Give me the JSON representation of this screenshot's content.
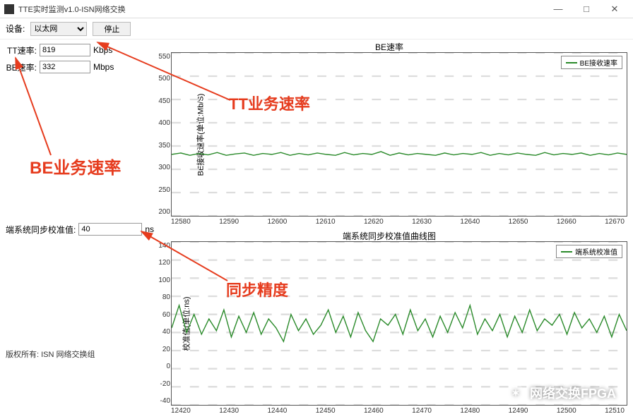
{
  "window": {
    "title": "TTE实时监测v1.0-ISN网络交换",
    "min": "—",
    "max": "□",
    "close": "✕"
  },
  "toolbar": {
    "device_label": "设备:",
    "device_value": "以太网",
    "stop_label": "停止"
  },
  "fields": {
    "tt_label": "TT速率:",
    "tt_value": "819",
    "tt_unit": "Kbps",
    "be_label": "BE速率:",
    "be_value": "332",
    "be_unit": "Mbps",
    "sync_label": "端系统同步校准值:",
    "sync_value": "40",
    "sync_unit": "ns"
  },
  "copyright": "版权所有: ISN 网络交换组",
  "chart1": {
    "title": "BE速率",
    "legend": "BE接收速率",
    "ylabel": "BE接收速率(单位:Mb/S)",
    "ylim": [
      200,
      550
    ],
    "yticks": [
      550,
      500,
      450,
      400,
      350,
      300,
      250,
      200
    ],
    "xticks": [
      "12580",
      "12590",
      "12600",
      "12610",
      "12620",
      "12630",
      "12640",
      "12650",
      "12660",
      "12670"
    ],
    "series_y": [
      332,
      335,
      330,
      334,
      331,
      336,
      330,
      333,
      335,
      330,
      334,
      332,
      336,
      330,
      334,
      331,
      335,
      332,
      330,
      336,
      331,
      334,
      332,
      338,
      330,
      335,
      331,
      334,
      332,
      330,
      335,
      331,
      334,
      332,
      336,
      330,
      334,
      331,
      335,
      332,
      330,
      336,
      331,
      334,
      332,
      335,
      330,
      334,
      331,
      335,
      332
    ],
    "line_color": "#2a8a2a",
    "grid_color": "#dddddd",
    "bg": "#ffffff"
  },
  "chart2": {
    "title": "端系统同步校准值曲线图",
    "legend": "端系统校准值",
    "ylabel": "校准值(单位:ns)",
    "ylim": [
      -40,
      140
    ],
    "yticks": [
      140,
      120,
      100,
      80,
      60,
      40,
      20,
      0,
      -20,
      -40
    ],
    "xticks": [
      "12420",
      "12430",
      "12440",
      "12450",
      "12460",
      "12470",
      "12480",
      "12490",
      "12500",
      "12510"
    ],
    "series_y": [
      45,
      70,
      40,
      60,
      38,
      55,
      42,
      65,
      35,
      58,
      40,
      62,
      38,
      55,
      45,
      30,
      60,
      42,
      55,
      38,
      48,
      65,
      40,
      58,
      35,
      62,
      42,
      30,
      55,
      48,
      60,
      38,
      65,
      42,
      55,
      35,
      58,
      40,
      62,
      45,
      70,
      38,
      55,
      42,
      60,
      35,
      58,
      40,
      65,
      42,
      55,
      48,
      60,
      38,
      62,
      45,
      55,
      40,
      58,
      35,
      60,
      42
    ],
    "line_color": "#2a8a2a",
    "grid_color": "#dddddd",
    "bg": "#ffffff"
  },
  "annotations": {
    "tt_rate": "TT业务速率",
    "be_rate": "BE业务速率",
    "sync_acc": "同步精度"
  },
  "watermark": "网络交换FPGA",
  "colors": {
    "annot": "#e63c1e"
  }
}
